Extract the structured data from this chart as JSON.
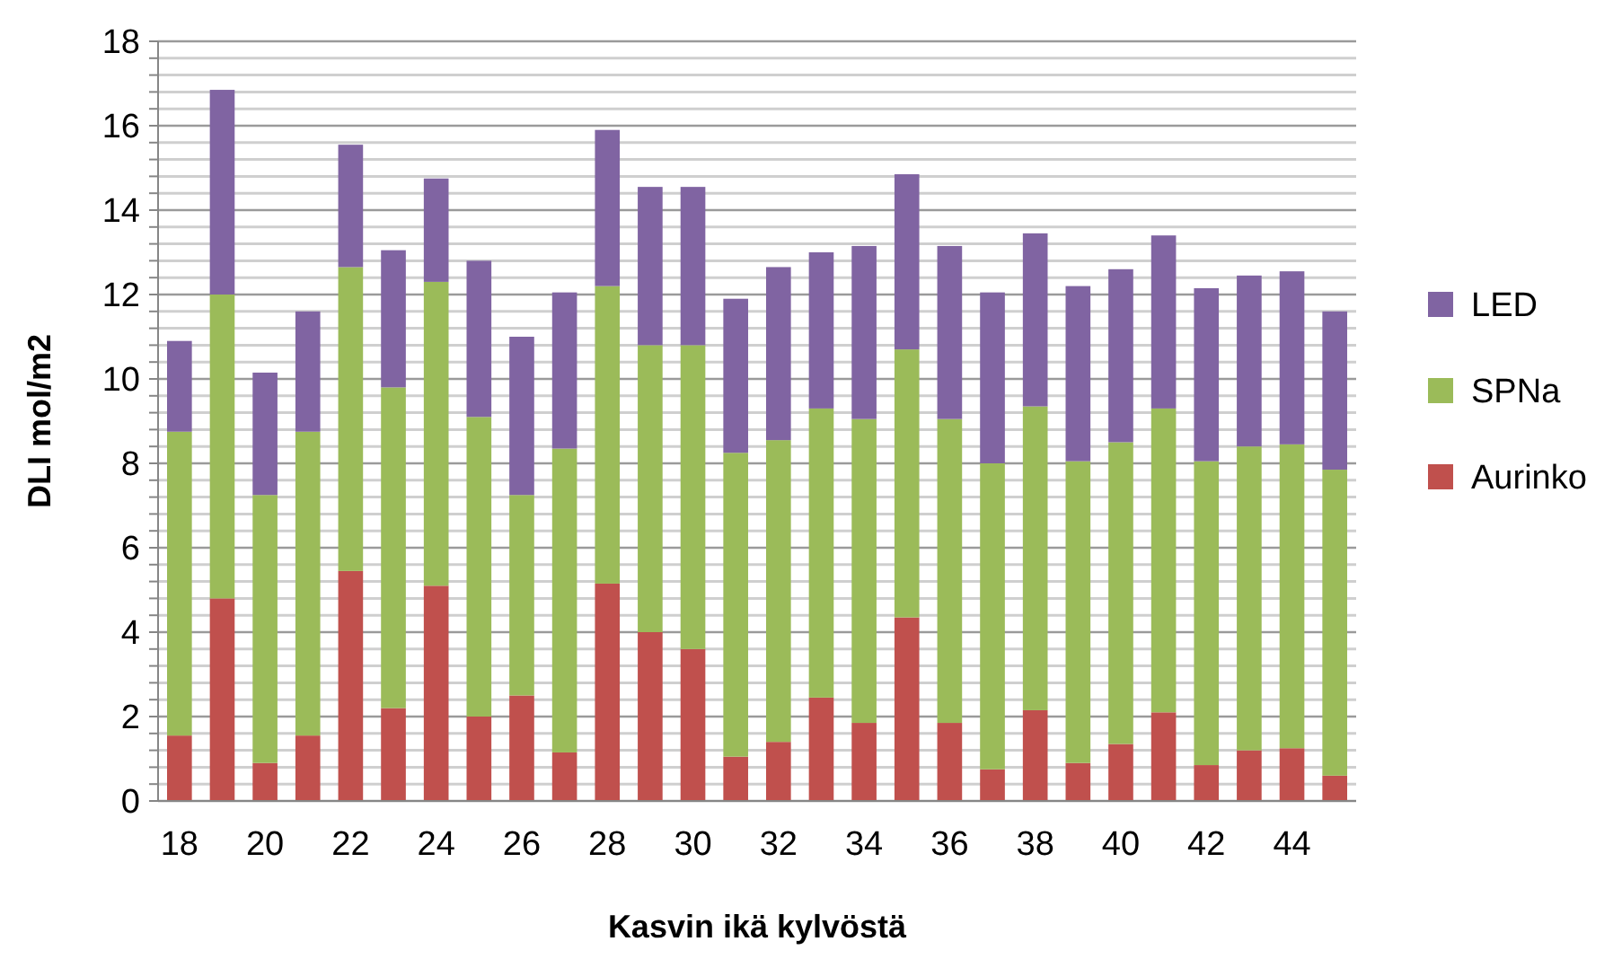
{
  "chart_data": {
    "type": "bar",
    "stacked": true,
    "xlabel": "Kasvin ikä kylvöstä",
    "ylabel": "DLI mol/m2",
    "categories": [
      "18",
      null,
      "20",
      null,
      "22",
      null,
      "24",
      null,
      "26",
      null,
      "28",
      null,
      "30",
      null,
      "32",
      null,
      "34",
      null,
      "36",
      null,
      "38",
      null,
      "40",
      null,
      "42",
      null,
      "44",
      null
    ],
    "series": [
      {
        "name": "Aurinko",
        "color": "#c0504d",
        "values": [
          1.55,
          4.8,
          0.9,
          1.55,
          5.45,
          2.2,
          5.1,
          2.0,
          2.5,
          1.15,
          5.15,
          4.0,
          3.6,
          1.05,
          1.4,
          2.45,
          1.85,
          4.35,
          1.85,
          0.75,
          2.15,
          0.9,
          1.35,
          2.1,
          0.85,
          1.2,
          1.25,
          0.6
        ]
      },
      {
        "name": "SPNa",
        "color": "#9bbb59",
        "values": [
          7.2,
          7.2,
          6.35,
          7.2,
          7.2,
          7.6,
          7.2,
          7.1,
          4.75,
          7.2,
          7.05,
          6.8,
          7.2,
          7.2,
          7.15,
          6.85,
          7.2,
          6.35,
          7.2,
          7.25,
          7.2,
          7.15,
          7.15,
          7.2,
          7.2,
          7.2,
          7.2,
          7.25
        ]
      },
      {
        "name": "LED",
        "color": "#8064a2",
        "values": [
          2.15,
          4.85,
          2.9,
          2.85,
          2.9,
          3.25,
          2.45,
          3.7,
          3.75,
          3.7,
          3.7,
          3.75,
          3.75,
          3.65,
          4.1,
          3.7,
          4.1,
          4.15,
          4.1,
          4.05,
          4.1,
          4.15,
          4.1,
          4.1,
          4.1,
          4.05,
          4.1,
          3.75
        ]
      }
    ],
    "ylim": [
      0,
      18
    ],
    "yticks": [
      0,
      {
        "value": 0.4,
        "label": null
      },
      {
        "value": 0.8,
        "label": null
      },
      {
        "value": 1.2,
        "label": null
      },
      {
        "value": 1.6,
        "label": null
      },
      2,
      {
        "value": 2.4,
        "label": null
      },
      {
        "value": 2.8,
        "label": null
      },
      {
        "value": 3.2,
        "label": null
      },
      {
        "value": 3.6,
        "label": null
      },
      4,
      {
        "value": 4.4,
        "label": null
      },
      {
        "value": 4.8,
        "label": null
      },
      {
        "value": 5.2,
        "label": null
      },
      {
        "value": 5.6,
        "label": null
      },
      6,
      {
        "value": 6.4,
        "label": null
      },
      {
        "value": 6.8,
        "label": null
      },
      {
        "value": 7.2,
        "label": null
      },
      {
        "value": 7.6,
        "label": null
      },
      8,
      {
        "value": 8.4,
        "label": null
      },
      {
        "value": 8.8,
        "label": null
      },
      {
        "value": 9.2,
        "label": null
      },
      {
        "value": 9.6,
        "label": null
      },
      10,
      {
        "value": 10.4,
        "label": null
      },
      {
        "value": 10.8,
        "label": null
      },
      {
        "value": 11.2,
        "label": null
      },
      {
        "value": 11.6,
        "label": null
      },
      12,
      {
        "value": 12.4,
        "label": null
      },
      {
        "value": 12.8,
        "label": null
      },
      {
        "value": 13.2,
        "label": null
      },
      {
        "value": 13.6,
        "label": null
      },
      14,
      {
        "value": 14.4,
        "label": null
      },
      {
        "value": 14.8,
        "label": null
      },
      {
        "value": 15.2,
        "label": null
      },
      {
        "value": 15.6,
        "label": null
      },
      16,
      {
        "value": 16.4,
        "label": null
      },
      {
        "value": 16.8,
        "label": null
      },
      {
        "value": 17.2,
        "label": null
      },
      {
        "value": 17.6,
        "label": null
      },
      18
    ],
    "grid": "y",
    "legend": "right"
  }
}
